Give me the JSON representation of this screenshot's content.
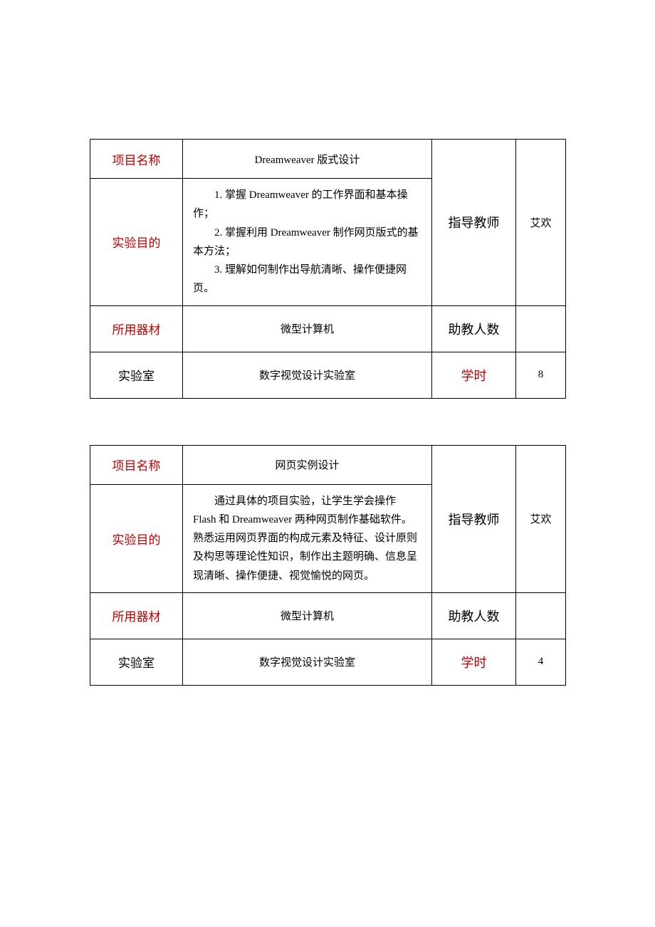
{
  "colors": {
    "red": "#c00000",
    "black": "#000000",
    "border": "#000000",
    "background": "#ffffff"
  },
  "table1": {
    "labels": {
      "project_name": "项目名称",
      "purpose": "实验目的",
      "equipment": "所用器材",
      "lab": "实验室",
      "instructor": "指导教师",
      "assistants": "助教人数",
      "hours": "学时"
    },
    "values": {
      "project_name": "Dreamweaver 版式设计",
      "purpose_1": "1. 掌握 Dreamweaver 的工作界面和基本操作；",
      "purpose_2": "2. 掌握利用 Dreamweaver 制作网页版式的基本方法；",
      "purpose_3": "3. 理解如何制作出导航清晰、操作便捷网页。",
      "equipment": "微型计算机",
      "lab": "数字视觉设计实验室",
      "instructor": "艾欢",
      "assistants": "",
      "hours": "8"
    }
  },
  "table2": {
    "labels": {
      "project_name": "项目名称",
      "purpose": "实验目的",
      "equipment": "所用器材",
      "lab": "实验室",
      "instructor": "指导教师",
      "assistants": "助教人数",
      "hours": "学时"
    },
    "values": {
      "project_name": "网页实例设计",
      "purpose": "通过具体的项目实验，让学生学会操作 Flash 和 Dreamweaver 两种网页制作基础软件。熟悉运用网页界面的构成元素及特征、设计原则及构思等理论性知识，制作出主题明确、信息呈现清晰、操作便捷、视觉愉悦的网页。",
      "equipment": "微型计算机",
      "lab": "数字视觉设计实验室",
      "instructor": "艾欢",
      "assistants": "",
      "hours": "4"
    }
  }
}
